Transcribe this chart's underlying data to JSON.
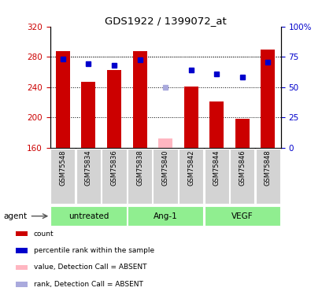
{
  "title": "GDS1922 / 1399072_at",
  "samples": [
    "GSM75548",
    "GSM75834",
    "GSM75836",
    "GSM75838",
    "GSM75840",
    "GSM75842",
    "GSM75844",
    "GSM75846",
    "GSM75848"
  ],
  "bar_values": [
    287,
    247,
    262,
    287,
    null,
    241,
    221,
    198,
    290
  ],
  "absent_bar_values": [
    null,
    null,
    null,
    null,
    172,
    null,
    null,
    null,
    null
  ],
  "bar_color": "#CC0000",
  "absent_bar_color": "#FFB6C1",
  "rank_values": [
    277,
    271,
    269,
    276,
    null,
    263,
    257,
    253,
    273
  ],
  "absent_rank_values": [
    null,
    null,
    null,
    null,
    240,
    null,
    null,
    null,
    null
  ],
  "rank_color": "#0000CC",
  "absent_rank_color": "#AAAADD",
  "ylim_left": [
    160,
    320
  ],
  "ylim_right": [
    0,
    100
  ],
  "yticks_left": [
    160,
    200,
    240,
    280,
    320
  ],
  "yticks_right": [
    0,
    25,
    50,
    75,
    100
  ],
  "yticklabels_right": [
    "0",
    "25",
    "50",
    "75",
    "100%"
  ],
  "groups": [
    {
      "label": "untreated",
      "indices": [
        0,
        1,
        2
      ],
      "color": "#90EE90"
    },
    {
      "label": "Ang-1",
      "indices": [
        3,
        4,
        5
      ],
      "color": "#90EE90"
    },
    {
      "label": "VEGF",
      "indices": [
        6,
        7,
        8
      ],
      "color": "#90EE90"
    }
  ],
  "agent_label": "agent",
  "legend_items": [
    {
      "label": "count",
      "color": "#CC0000"
    },
    {
      "label": "percentile rank within the sample",
      "color": "#0000CC"
    },
    {
      "label": "value, Detection Call = ABSENT",
      "color": "#FFB6C1"
    },
    {
      "label": "rank, Detection Call = ABSENT",
      "color": "#AAAADD"
    }
  ],
  "background_color": "#ffffff",
  "tick_color_left": "#CC0000",
  "tick_color_right": "#0000CC",
  "group_bg_color": "#D3D3D3",
  "xlim": [
    -0.5,
    8.5
  ]
}
